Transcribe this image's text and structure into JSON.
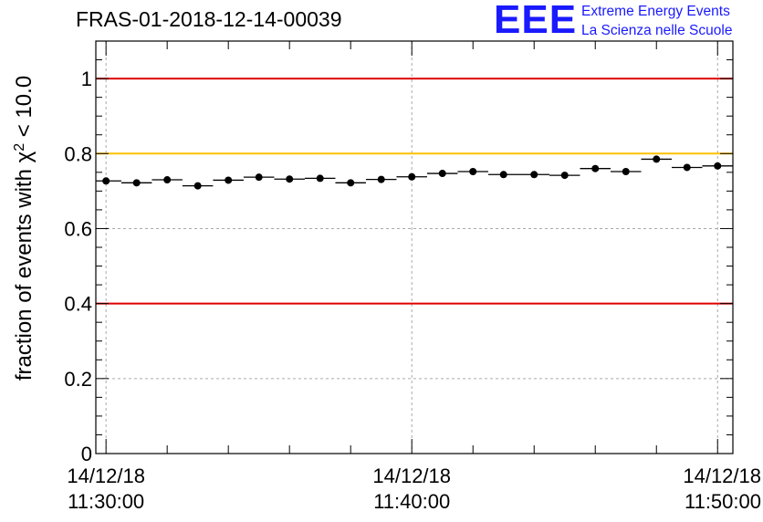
{
  "header": {
    "run_title": "FRAS-01-2018-12-14-00039",
    "logo_mark": "EEE",
    "logo_line1": "Extreme Energy Events",
    "logo_line2": "La Scienza nelle Scuole"
  },
  "colors": {
    "threshold_low": "#e00000",
    "threshold_high": "#e00000",
    "reference_line": "#ffc000",
    "logo": "#1a1aff",
    "markers": "#000000"
  },
  "chart_data": {
    "type": "scatter",
    "ylabel_parts": {
      "prefix": "fraction of events with ",
      "symbol": "χ",
      "superscript": "2",
      "suffix": " < 10.0"
    },
    "ylim": [
      0,
      1.1
    ],
    "y_ticks": [
      {
        "value": 0,
        "label": "0"
      },
      {
        "value": 0.2,
        "label": "0.2"
      },
      {
        "value": 0.4,
        "label": "0.4"
      },
      {
        "value": 0.6,
        "label": "0.6"
      },
      {
        "value": 0.8,
        "label": "0.8"
      },
      {
        "value": 1,
        "label": "1"
      }
    ],
    "xlim": [
      "14/12/18 11:29:40",
      "14/12/18 11:50:30"
    ],
    "x_ticks": [
      {
        "date": "14/12/18",
        "time": "11:30:00",
        "value": "11:30:00"
      },
      {
        "date": "14/12/18",
        "time": "11:40:00",
        "value": "11:40:00"
      },
      {
        "date": "14/12/18",
        "time": "11:50:00",
        "value": "11:50:00"
      }
    ],
    "x_minor_ticks": [
      "11:32:00",
      "11:34:00",
      "11:36:00",
      "11:38:00",
      "11:42:00",
      "11:44:00",
      "11:46:00",
      "11:48:00"
    ],
    "horizontal_lines": [
      {
        "y": 1.0,
        "color": "#e00000"
      },
      {
        "y": 0.8,
        "color": "#ffc000"
      },
      {
        "y": 0.4,
        "color": "#e00000"
      }
    ],
    "grid": true,
    "series": [
      {
        "x": [
          "11:30:00",
          "11:31:00",
          "11:32:00",
          "11:33:00",
          "11:34:00",
          "11:35:00",
          "11:36:00",
          "11:37:00",
          "11:38:00",
          "11:39:00",
          "11:40:00",
          "11:41:00",
          "11:42:00",
          "11:43:00",
          "11:44:00",
          "11:45:00",
          "11:46:00",
          "11:47:00",
          "11:48:00",
          "11:49:00",
          "11:50:00"
        ],
        "values": [
          0.727,
          0.722,
          0.73,
          0.714,
          0.729,
          0.737,
          0.732,
          0.734,
          0.722,
          0.731,
          0.738,
          0.747,
          0.752,
          0.744,
          0.744,
          0.742,
          0.76,
          0.752,
          0.785,
          0.763,
          0.767
        ],
        "bin_width_seconds": 60
      }
    ]
  }
}
